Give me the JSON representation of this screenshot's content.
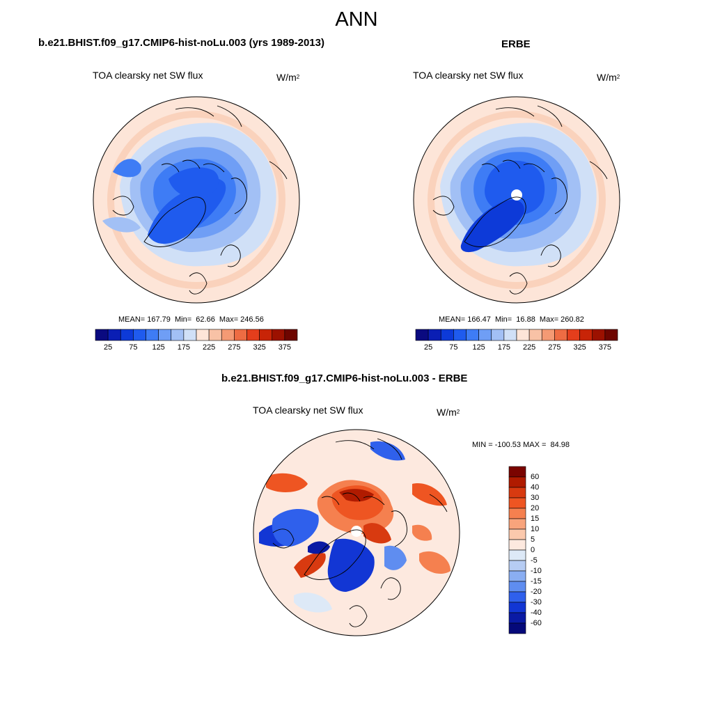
{
  "figure": {
    "title": "ANN"
  },
  "panels": [
    {
      "id": "model",
      "title": "b.e21.BHIST.f09_g17.CMIP6-hist-noLu.003 (yrs 1989-2013)",
      "variable": "TOA clearsky net SW flux",
      "units_base": "W/m",
      "units_exp": "2",
      "stats": "MEAN= 167.79  Min=  62.66  Max= 246.56",
      "mean": 167.79,
      "min": 62.66,
      "max": 246.56
    },
    {
      "id": "obs",
      "title": "ERBE",
      "variable": "TOA clearsky net SW flux",
      "units_base": "W/m",
      "units_exp": "2",
      "stats": "MEAN= 166.47  Min=  16.88  Max= 260.82",
      "mean": 166.47,
      "min": 16.88,
      "max": 260.82
    },
    {
      "id": "diff",
      "title": "b.e21.BHIST.f09_g17.CMIP6-hist-noLu.003 - ERBE",
      "variable": "TOA clearsky net SW flux",
      "units_base": "W/m",
      "units_exp": "2",
      "stats": "MIN = -100.53 MAX =  84.98",
      "min": -100.53,
      "max": 84.98
    }
  ],
  "colorbar_abs": {
    "tick_labels": [
      "25",
      "75",
      "125",
      "175",
      "225",
      "275",
      "325",
      "375"
    ],
    "colors": [
      "#0a0a80",
      "#0a1eb4",
      "#0d3ad8",
      "#1f5bee",
      "#3e7cf5",
      "#6f9ef5",
      "#a2c0f5",
      "#d0e0f7",
      "#fde5d8",
      "#f8c2a6",
      "#f49a74",
      "#ee6c43",
      "#e43e1c",
      "#c82407",
      "#9c1100",
      "#6e0500"
    ]
  },
  "colorbar_diff": {
    "tick_labels": [
      "60",
      "40",
      "30",
      "20",
      "15",
      "10",
      "5",
      "0",
      "-5",
      "-10",
      "-15",
      "-20",
      "-30",
      "-40",
      "-60"
    ],
    "colors": [
      "#7a0400",
      "#b01b00",
      "#d83a10",
      "#ee5522",
      "#f5804f",
      "#f8a47c",
      "#fbc9ad",
      "#fde9df",
      "#dde9f7",
      "#b6ccf3",
      "#8aaef2",
      "#5f8df0",
      "#2f60ec",
      "#1236d4",
      "#0a1aa4",
      "#05097a"
    ]
  }
}
